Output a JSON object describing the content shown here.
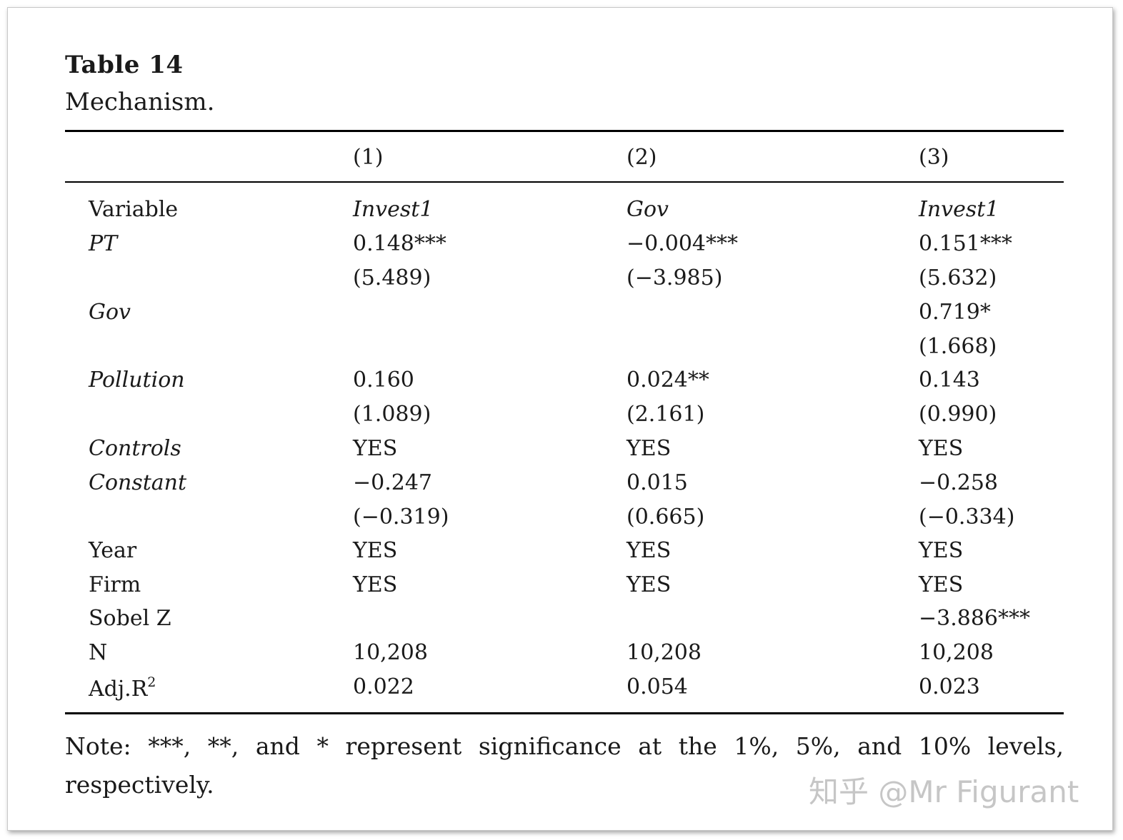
{
  "table": {
    "title": "Table 14",
    "subtitle": "Mechanism.",
    "column_headers": [
      "(1)",
      "(2)",
      "(3)"
    ],
    "rows": [
      {
        "label": "Variable",
        "label_italic": false,
        "values": [
          "Invest1",
          "Gov",
          "Invest1"
        ],
        "values_italic": true
      },
      {
        "label": "PT",
        "label_italic": true,
        "values": [
          "0.148***",
          "−0.004***",
          "0.151***"
        ]
      },
      {
        "label": "",
        "values": [
          "(5.489)",
          "(−3.985)",
          "(5.632)"
        ]
      },
      {
        "label": "Gov",
        "label_italic": true,
        "values": [
          "",
          "",
          "0.719*"
        ]
      },
      {
        "label": "",
        "values": [
          "",
          "",
          "(1.668)"
        ]
      },
      {
        "label": "Pollution",
        "label_italic": true,
        "values": [
          "0.160",
          "0.024**",
          "0.143"
        ]
      },
      {
        "label": "",
        "values": [
          "(1.089)",
          "(2.161)",
          "(0.990)"
        ]
      },
      {
        "label": "Controls",
        "label_italic": true,
        "values": [
          "YES",
          "YES",
          "YES"
        ]
      },
      {
        "label": "Constant",
        "label_italic": true,
        "values": [
          "−0.247",
          "0.015",
          "−0.258"
        ]
      },
      {
        "label": "",
        "values": [
          "(−0.319)",
          "(0.665)",
          "(−0.334)"
        ]
      },
      {
        "label": "Year",
        "label_italic": false,
        "values": [
          "YES",
          "YES",
          "YES"
        ]
      },
      {
        "label": "Firm",
        "label_italic": false,
        "values": [
          "YES",
          "YES",
          "YES"
        ]
      },
      {
        "label": "Sobel Z",
        "label_italic": false,
        "values": [
          "",
          "",
          "−3.886***"
        ]
      },
      {
        "label": "N",
        "label_italic": false,
        "values": [
          "10,208",
          "10,208",
          "10,208"
        ]
      },
      {
        "label": "Adj.R",
        "label_sup": "2",
        "label_italic": false,
        "values": [
          "0.022",
          "0.054",
          "0.023"
        ]
      }
    ],
    "note": "Note: ***, **, and * represent significance at the 1%, 5%, and 10% levels, respectively."
  },
  "watermark": "知乎 @Mr Figurant"
}
